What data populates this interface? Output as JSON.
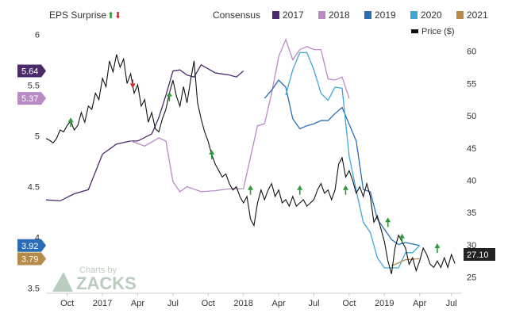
{
  "chart_data": {
    "type": "line",
    "header": {
      "left_title": "EPS Surprise",
      "consensus_label": "Consensus",
      "up_arrow": "⬆",
      "down_arrow": "⬇"
    },
    "legend": [
      {
        "label": "2017",
        "color": "#4b2a6b"
      },
      {
        "label": "2018",
        "color": "#b88bc4"
      },
      {
        "label": "2019",
        "color": "#2a6db4"
      },
      {
        "label": "2020",
        "color": "#3fa7d6"
      },
      {
        "label": "2021",
        "color": "#b68b4a"
      }
    ],
    "price_legend": "Price ($)",
    "x_ticks": [
      "Oct",
      "2017",
      "Apr",
      "Jul",
      "Oct",
      "2018",
      "Apr",
      "Jul",
      "Oct",
      "2019",
      "Apr",
      "Jul"
    ],
    "left_axis": {
      "ticks": [
        "3.5",
        "4",
        "4.5",
        "5",
        "5.5",
        "6"
      ],
      "ylim": [
        3.45,
        6.12
      ]
    },
    "right_axis": {
      "ticks": [
        "25",
        "30",
        "35",
        "40",
        "45",
        "50",
        "55",
        "60"
      ],
      "ylim": [
        22.5,
        64.5
      ]
    },
    "current_price": "27.10",
    "eps_badges": [
      {
        "value": "5.64",
        "color": "#4b2a6b"
      },
      {
        "value": "5.37",
        "color": "#b88bc4"
      },
      {
        "value": "3.92",
        "color": "#2a6db4"
      },
      {
        "value": "3.79",
        "color": "#b68b4a"
      }
    ],
    "price_series": [
      [
        0,
        46.5
      ],
      [
        0.5,
        46.2
      ],
      [
        1,
        45.8
      ],
      [
        1.5,
        46.5
      ],
      [
        2,
        47.8
      ],
      [
        2.5,
        47.5
      ],
      [
        3,
        48.5
      ],
      [
        3.5,
        49.2
      ],
      [
        4,
        47.8
      ],
      [
        4.5,
        48.5
      ],
      [
        5,
        50.5
      ],
      [
        5.5,
        49.0
      ],
      [
        6,
        51.5
      ],
      [
        6.5,
        51.0
      ],
      [
        7,
        53.5
      ],
      [
        7.5,
        52.5
      ],
      [
        8,
        55.8
      ],
      [
        8.5,
        54.5
      ],
      [
        9,
        58.5
      ],
      [
        9.5,
        56.8
      ],
      [
        10,
        59.5
      ],
      [
        10.5,
        57.5
      ],
      [
        11,
        58.8
      ],
      [
        11.5,
        55.0
      ],
      [
        12,
        56.5
      ],
      [
        12.5,
        53.5
      ],
      [
        13,
        54.8
      ],
      [
        13.5,
        51.5
      ],
      [
        14,
        52.5
      ],
      [
        14.5,
        49.0
      ],
      [
        15,
        50.5
      ],
      [
        15.5,
        48.0
      ],
      [
        16,
        47.5
      ],
      [
        16.5,
        49.5
      ],
      [
        17,
        51.0
      ],
      [
        17.5,
        53.5
      ],
      [
        18,
        55.5
      ],
      [
        18.5,
        53.0
      ],
      [
        19,
        51.5
      ],
      [
        19.5,
        54.5
      ],
      [
        20,
        52.0
      ],
      [
        20.5,
        55.5
      ],
      [
        21,
        58.5
      ],
      [
        21.5,
        52.0
      ],
      [
        22,
        49.5
      ],
      [
        22.5,
        47.5
      ],
      [
        23,
        46.0
      ],
      [
        23.5,
        44.0
      ],
      [
        24,
        42.5
      ],
      [
        24.5,
        41.5
      ],
      [
        25,
        40.5
      ],
      [
        25.5,
        41.0
      ],
      [
        26,
        39.5
      ],
      [
        26.5,
        38.5
      ],
      [
        27,
        39.0
      ],
      [
        27.5,
        37.5
      ],
      [
        28,
        36.5
      ],
      [
        28.5,
        37.5
      ],
      [
        29,
        34.0
      ],
      [
        29.5,
        33.0
      ],
      [
        30,
        36.5
      ],
      [
        30.5,
        38.5
      ],
      [
        31,
        37.0
      ],
      [
        31.5,
        38.5
      ],
      [
        32,
        39.5
      ],
      [
        32.5,
        37.5
      ],
      [
        33,
        38.5
      ],
      [
        33.5,
        36.5
      ],
      [
        34,
        37.0
      ],
      [
        34.5,
        36.0
      ],
      [
        35,
        37.5
      ],
      [
        35.5,
        36.0
      ],
      [
        36,
        36.5
      ],
      [
        36.5,
        37.0
      ],
      [
        37,
        36.0
      ],
      [
        37.5,
        36.5
      ],
      [
        38,
        37.0
      ],
      [
        38.5,
        38.5
      ],
      [
        39,
        39.5
      ],
      [
        39.5,
        38.0
      ],
      [
        40,
        38.5
      ],
      [
        40.5,
        37.0
      ],
      [
        41,
        38.5
      ],
      [
        41.5,
        42.5
      ],
      [
        42,
        43.5
      ],
      [
        42.5,
        40.5
      ],
      [
        43,
        41.5
      ],
      [
        43.5,
        40.0
      ],
      [
        44,
        38.0
      ],
      [
        44.5,
        39.0
      ],
      [
        45,
        37.5
      ],
      [
        45.5,
        39.5
      ],
      [
        46,
        37.5
      ],
      [
        46.5,
        33.5
      ],
      [
        47,
        34.5
      ],
      [
        47.5,
        32.5
      ],
      [
        48,
        30.5
      ],
      [
        48.5,
        27.5
      ],
      [
        49,
        25.5
      ],
      [
        49.5,
        29.5
      ],
      [
        50,
        31.5
      ],
      [
        50.5,
        30.5
      ],
      [
        51,
        29.5
      ],
      [
        51.5,
        27.0
      ],
      [
        52,
        28.0
      ],
      [
        52.5,
        26.0
      ],
      [
        53,
        27.5
      ],
      [
        53.5,
        29.5
      ],
      [
        54,
        28.5
      ],
      [
        54.5,
        27.0
      ],
      [
        55,
        26.5
      ],
      [
        55.5,
        27.5
      ],
      [
        56,
        26.5
      ],
      [
        56.5,
        28.0
      ],
      [
        57,
        26.5
      ],
      [
        57.5,
        28.5
      ],
      [
        58,
        27.1
      ]
    ],
    "consensus_2017": [
      [
        0,
        4.37
      ],
      [
        2,
        4.36
      ],
      [
        4,
        4.43
      ],
      [
        6,
        4.47
      ],
      [
        8,
        4.82
      ],
      [
        10,
        4.92
      ],
      [
        12,
        4.95
      ],
      [
        13,
        4.95
      ],
      [
        15,
        5.02
      ],
      [
        16,
        5.18
      ],
      [
        17,
        5.4
      ],
      [
        18,
        5.64
      ],
      [
        19,
        5.65
      ],
      [
        20,
        5.6
      ],
      [
        21,
        5.58
      ],
      [
        22,
        5.7
      ],
      [
        24,
        5.62
      ],
      [
        25,
        5.61
      ],
      [
        26,
        5.6
      ],
      [
        27,
        5.58
      ],
      [
        28,
        5.64
      ]
    ],
    "consensus_2018": [
      [
        12,
        4.95
      ],
      [
        14,
        4.9
      ],
      [
        16,
        4.98
      ],
      [
        17,
        4.95
      ],
      [
        18,
        4.55
      ],
      [
        19,
        4.45
      ],
      [
        20,
        4.5
      ],
      [
        22,
        4.45
      ],
      [
        24,
        4.46
      ],
      [
        26,
        4.48
      ],
      [
        28,
        4.48
      ],
      [
        30,
        5.1
      ],
      [
        31,
        5.12
      ],
      [
        32,
        5.42
      ],
      [
        33,
        5.78
      ],
      [
        34,
        5.95
      ],
      [
        35,
        5.75
      ],
      [
        36,
        5.85
      ],
      [
        37,
        5.88
      ],
      [
        38,
        5.85
      ],
      [
        39,
        5.85
      ],
      [
        40,
        5.56
      ],
      [
        41,
        5.55
      ],
      [
        42,
        5.58
      ],
      [
        43,
        5.37
      ]
    ],
    "consensus_2019": [
      [
        31,
        5.37
      ],
      [
        32,
        5.45
      ],
      [
        33,
        5.55
      ],
      [
        34,
        5.48
      ],
      [
        35,
        5.17
      ],
      [
        36,
        5.07
      ],
      [
        37,
        5.1
      ],
      [
        38,
        5.12
      ],
      [
        39,
        5.15
      ],
      [
        40,
        5.15
      ],
      [
        41,
        5.22
      ],
      [
        42,
        5.28
      ],
      [
        44,
        4.95
      ],
      [
        45,
        4.47
      ],
      [
        46,
        4.45
      ],
      [
        47,
        4.18
      ],
      [
        48,
        4.08
      ],
      [
        49,
        3.98
      ],
      [
        50,
        3.93
      ],
      [
        51,
        3.95
      ],
      [
        53,
        3.92
      ]
    ],
    "consensus_2020": [
      [
        34,
        5.4
      ],
      [
        35,
        5.65
      ],
      [
        36,
        5.82
      ],
      [
        37,
        5.82
      ],
      [
        38,
        5.65
      ],
      [
        39,
        5.42
      ],
      [
        40,
        5.35
      ],
      [
        41,
        5.48
      ],
      [
        42,
        5.47
      ],
      [
        43,
        4.8
      ],
      [
        44,
        4.46
      ],
      [
        45,
        4.15
      ],
      [
        46,
        4.05
      ],
      [
        47,
        3.8
      ],
      [
        48,
        3.7
      ],
      [
        50,
        3.7
      ],
      [
        51,
        3.85
      ],
      [
        52,
        3.85
      ],
      [
        53,
        3.92
      ]
    ],
    "consensus_2021": [
      [
        49,
        3.72
      ],
      [
        50,
        3.75
      ],
      [
        51,
        3.78
      ],
      [
        53,
        3.79
      ]
    ],
    "surprise_markers": [
      {
        "x": 3.5,
        "y": 49.0,
        "dir": "up"
      },
      {
        "x": 12.3,
        "y": 55.0,
        "dir": "down"
      },
      {
        "x": 17.5,
        "y": 53.0,
        "dir": "up"
      },
      {
        "x": 23.5,
        "y": 44.0,
        "dir": "up"
      },
      {
        "x": 29.0,
        "y": 38.5,
        "dir": "up"
      },
      {
        "x": 36.0,
        "y": 38.5,
        "dir": "up"
      },
      {
        "x": 42.5,
        "y": 38.5,
        "dir": "up"
      },
      {
        "x": 48.5,
        "y": 33.5,
        "dir": "up"
      },
      {
        "x": 50.5,
        "y": 31.0,
        "dir": "up"
      },
      {
        "x": 55.5,
        "y": 29.5,
        "dir": "up"
      }
    ],
    "watermark": {
      "small": "Charts by",
      "big": "ZACKS"
    }
  }
}
